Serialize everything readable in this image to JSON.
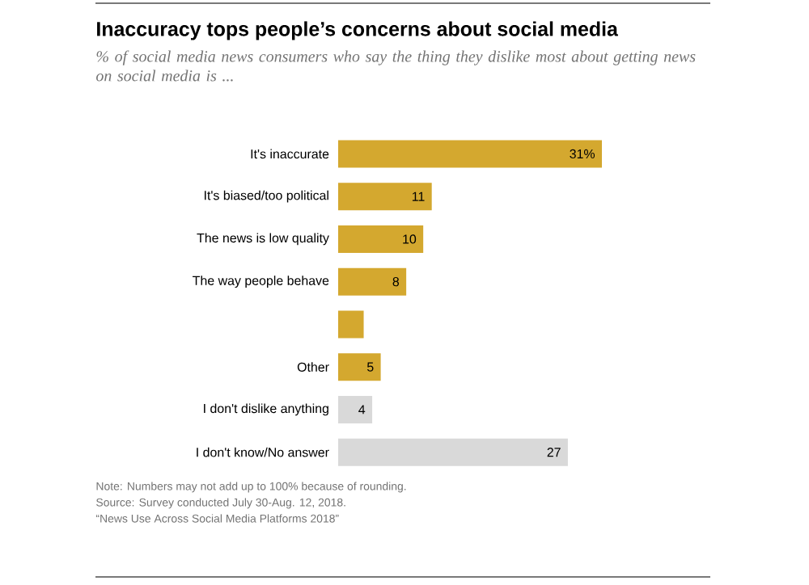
{
  "chart_data": {
    "type": "bar",
    "orientation": "horizontal",
    "title": "Inaccuracy tops people’s concerns about social media",
    "subtitle": "% of social media news consumers who say the thing they dislike most about getting news on social media is ...",
    "categories": [
      "It's inaccurate",
      "It's biased/too political",
      "The news is low quality",
      "The way people behave",
      null,
      "Other",
      "I don't dislike anything",
      "I don't know/No answer"
    ],
    "values": [
      31,
      11,
      10,
      8,
      3,
      5,
      4,
      27
    ],
    "value_labels": [
      "31%",
      "11",
      "10",
      "8",
      null,
      "5",
      "4",
      "27"
    ],
    "colors": [
      "#d4a82f",
      "#d4a82f",
      "#d4a82f",
      "#d4a82f",
      "#d4a82f",
      "#d4a82f",
      "#d9d9d9",
      "#d9d9d9"
    ],
    "tick_labels": "y",
    "annotations": [
      "Note: Numbers may not add up to 100% because of rounding.",
      "Source: Survey conducted July 30-Aug. 12, 2018.",
      "“News Use Across Social Media Platforms 2018”"
    ]
  }
}
